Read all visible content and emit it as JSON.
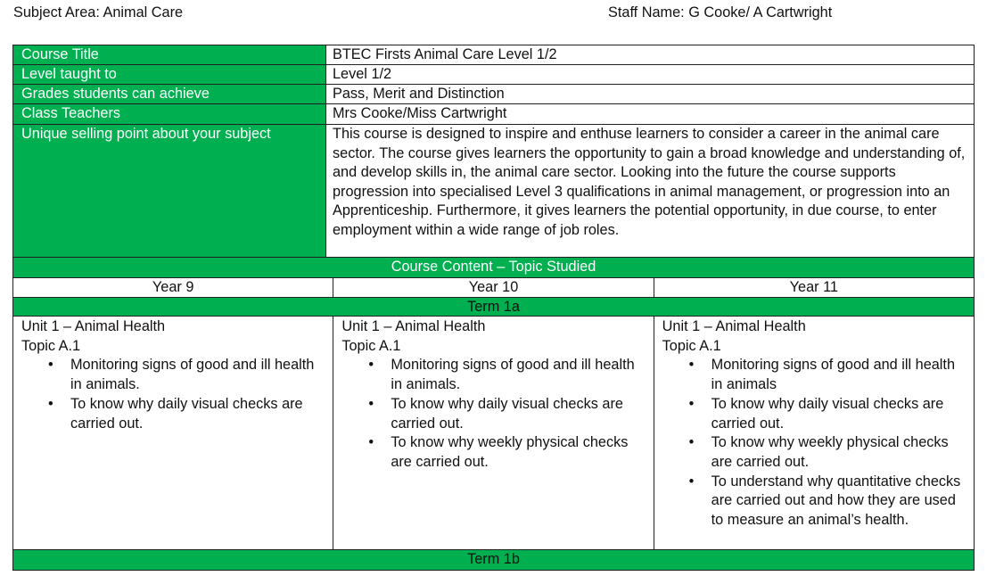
{
  "header": {
    "subject_area": "Subject Area: Animal Care",
    "staff_name": "Staff Name: G Cooke/ A Cartwright"
  },
  "colors": {
    "accent_green": "#00b050"
  },
  "details": [
    {
      "label": "Course Title",
      "value": "BTEC Firsts Animal Care Level 1/2"
    },
    {
      "label": "Level taught to",
      "value": "Level 1/2"
    },
    {
      "label": "Grades students can achieve",
      "value": "Pass, Merit and Distinction"
    },
    {
      "label": "Class Teachers",
      "value": "Mrs Cooke/Miss Cartwright"
    },
    {
      "label": "Unique selling point about your subject",
      "value": "This course is designed to inspire and enthuse learners to consider a career in the animal care sector. The course gives learners the opportunity to gain a broad knowledge and understanding of, and develop skills in, the animal care sector. Looking into the future the course supports progression into specialised Level 3 qualifications in animal management, or progression into an Apprenticeship. Furthermore, it gives learners the potential opportunity, in due course, to enter employment within a wide range of job roles."
    }
  ],
  "content_heading": "Course Content – Topic Studied",
  "years": [
    "Year 9",
    "Year 10",
    "Year 11"
  ],
  "terms": [
    {
      "label": "Term 1a",
      "cells": [
        {
          "unit": "Unit 1 – Animal Health",
          "topic": "Topic A.1",
          "bullets": [
            "Monitoring signs of good and ill health in animals.",
            "To know why daily visual checks are carried out."
          ]
        },
        {
          "unit": "Unit 1 – Animal Health",
          "topic": "Topic A.1",
          "bullets": [
            "Monitoring signs of good and ill health in animals.",
            "To know why daily visual checks are carried out.",
            "To know why weekly physical checks are carried out."
          ]
        },
        {
          "unit": "Unit 1 – Animal Health",
          "topic": "Topic A.1",
          "bullets": [
            "Monitoring signs of good and ill health in animals",
            "To know why daily visual checks are carried out.",
            "To know why weekly physical checks are carried out.",
            "To understand why quantitative checks are carried out and how they are used to measure an animal’s health."
          ]
        }
      ]
    },
    {
      "label": "Term 1b"
    }
  ]
}
